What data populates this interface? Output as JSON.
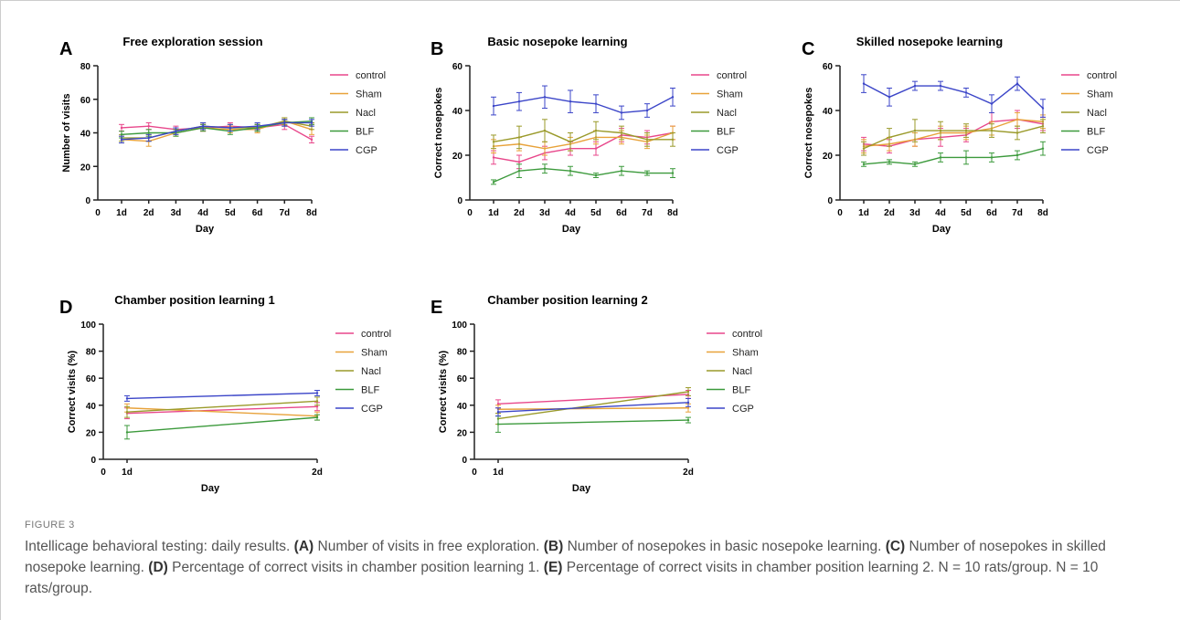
{
  "figure_label": "FIGURE 3",
  "caption": {
    "intro": "Intellicage behavioral testing: daily results.",
    "parts": [
      {
        "letter": "(A)",
        "text": " Number of visits in free exploration. "
      },
      {
        "letter": "(B)",
        "text": " Number of nosepokes in basic nosepoke learning. "
      },
      {
        "letter": "(C)",
        "text": " Number of nosepokes in skilled nosepoke learning. "
      },
      {
        "letter": "(D)",
        "text": " Percentage of correct visits in chamber position learning 1. "
      },
      {
        "letter": "(E)",
        "text": " Percentage of correct visits in chamber position learning 2. "
      }
    ],
    "n_note": "N = 10 rats/group. N = 10 rats/group."
  },
  "chart_data": [
    {
      "letter": "A",
      "type": "line",
      "title": "Free exploration session",
      "xlabel": "Day",
      "ylabel": "Number of visits",
      "categories": [
        "1d",
        "2d",
        "3d",
        "4d",
        "5d",
        "6d",
        "7d",
        "8d"
      ],
      "x_origin_label": "0",
      "ylim": [
        0,
        80
      ],
      "yticks": [
        0,
        20,
        40,
        60,
        80
      ],
      "legend": "right",
      "series": [
        {
          "name": "control",
          "color": "#e8478b",
          "values": [
            43,
            44,
            42,
            43,
            44,
            43,
            45,
            36
          ],
          "errors": [
            2,
            2,
            2,
            2,
            2,
            2,
            3,
            2
          ]
        },
        {
          "name": "Sham",
          "color": "#e8a23a",
          "values": [
            36,
            35,
            40,
            43,
            42,
            42,
            47,
            42
          ],
          "errors": [
            2,
            3,
            2,
            2,
            2,
            2,
            2,
            3
          ]
        },
        {
          "name": "Nacl",
          "color": "#9a9a2a",
          "values": [
            37,
            37,
            41,
            44,
            43,
            43,
            47,
            44
          ],
          "errors": [
            2,
            2,
            2,
            2,
            2,
            2,
            2,
            2
          ]
        },
        {
          "name": "BLF",
          "color": "#3c9a3c",
          "values": [
            39,
            40,
            40,
            43,
            41,
            43,
            46,
            47
          ],
          "errors": [
            2,
            2,
            2,
            2,
            2,
            2,
            2,
            2
          ]
        },
        {
          "name": "CGP",
          "color": "#3b45c8",
          "values": [
            36,
            37,
            41,
            44,
            43,
            44,
            46,
            46
          ],
          "errors": [
            2,
            2,
            2,
            2,
            2,
            2,
            2,
            2
          ]
        }
      ]
    },
    {
      "letter": "B",
      "type": "line",
      "title": "Basic nosepoke learning",
      "xlabel": "Day",
      "ylabel": "Correct nosepokes",
      "categories": [
        "1d",
        "2d",
        "3d",
        "4d",
        "5d",
        "6d",
        "7d",
        "8d"
      ],
      "x_origin_label": "0",
      "ylim": [
        0,
        60
      ],
      "yticks": [
        0,
        20,
        40,
        60
      ],
      "legend": "right",
      "series": [
        {
          "name": "control",
          "color": "#e8478b",
          "values": [
            19,
            17,
            21,
            23,
            23,
            29,
            28,
            30
          ],
          "errors": [
            3,
            3,
            3,
            3,
            3,
            3,
            3,
            3
          ]
        },
        {
          "name": "Sham",
          "color": "#e8a23a",
          "values": [
            24,
            25,
            23,
            25,
            28,
            28,
            26,
            30
          ],
          "errors": [
            3,
            3,
            3,
            3,
            3,
            3,
            3,
            3
          ]
        },
        {
          "name": "Nacl",
          "color": "#9a9a2a",
          "values": [
            26,
            28,
            31,
            26,
            31,
            30,
            27,
            27
          ],
          "errors": [
            3,
            5,
            5,
            4,
            4,
            3,
            3,
            3
          ]
        },
        {
          "name": "BLF",
          "color": "#3c9a3c",
          "values": [
            8,
            13,
            14,
            13,
            11,
            13,
            12,
            12
          ],
          "errors": [
            1,
            3,
            2,
            2,
            1,
            2,
            1,
            2
          ]
        },
        {
          "name": "CGP",
          "color": "#3b45c8",
          "values": [
            42,
            44,
            46,
            44,
            43,
            39,
            40,
            46
          ],
          "errors": [
            4,
            4,
            5,
            5,
            4,
            3,
            3,
            4
          ]
        }
      ]
    },
    {
      "letter": "C",
      "type": "line",
      "title": "Skilled nosepoke learning",
      "xlabel": "Day",
      "ylabel": "Correct nosepokes",
      "categories": [
        "1d",
        "2d",
        "3d",
        "4d",
        "5d",
        "6d",
        "7d",
        "8d"
      ],
      "x_origin_label": "0",
      "ylim": [
        0,
        60
      ],
      "yticks": [
        0,
        20,
        40,
        60
      ],
      "legend": "right",
      "series": [
        {
          "name": "control",
          "color": "#e8478b",
          "values": [
            25,
            24,
            27,
            28,
            29,
            35,
            36,
            34
          ],
          "errors": [
            3,
            3,
            3,
            4,
            3,
            4,
            4,
            3
          ]
        },
        {
          "name": "Sham",
          "color": "#e8a23a",
          "values": [
            24,
            25,
            27,
            30,
            30,
            32,
            36,
            35
          ],
          "errors": [
            3,
            3,
            3,
            3,
            3,
            3,
            3,
            3
          ]
        },
        {
          "name": "Nacl",
          "color": "#9a9a2a",
          "values": [
            23,
            28,
            31,
            31,
            31,
            31,
            30,
            33
          ],
          "errors": [
            3,
            4,
            5,
            4,
            3,
            3,
            3,
            3
          ]
        },
        {
          "name": "BLF",
          "color": "#3c9a3c",
          "values": [
            16,
            17,
            16,
            19,
            19,
            19,
            20,
            23
          ],
          "errors": [
            1,
            1,
            1,
            2,
            3,
            2,
            2,
            3
          ]
        },
        {
          "name": "CGP",
          "color": "#3b45c8",
          "values": [
            52,
            46,
            51,
            51,
            48,
            43,
            52,
            41
          ],
          "errors": [
            4,
            4,
            2,
            2,
            2,
            4,
            3,
            4
          ]
        }
      ]
    },
    {
      "letter": "D",
      "type": "line",
      "title": "Chamber position learning 1",
      "xlabel": "Day",
      "ylabel": "Correct visits (%)",
      "categories": [
        "1d",
        "2d"
      ],
      "x_origin_label": "0",
      "ylim": [
        0,
        100
      ],
      "yticks": [
        0,
        20,
        40,
        60,
        80,
        100
      ],
      "legend": "right",
      "series": [
        {
          "name": "control",
          "color": "#e8478b",
          "values": [
            34,
            39
          ],
          "errors": [
            4,
            3
          ]
        },
        {
          "name": "Sham",
          "color": "#e8a23a",
          "values": [
            38,
            32
          ],
          "errors": [
            3,
            3
          ]
        },
        {
          "name": "Nacl",
          "color": "#9a9a2a",
          "values": [
            35,
            43
          ],
          "errors": [
            4,
            3
          ]
        },
        {
          "name": "BLF",
          "color": "#3c9a3c",
          "values": [
            20,
            31
          ],
          "errors": [
            5,
            2
          ]
        },
        {
          "name": "CGP",
          "color": "#3b45c8",
          "values": [
            45,
            49
          ],
          "errors": [
            2,
            2
          ]
        }
      ]
    },
    {
      "letter": "E",
      "type": "line",
      "title": "Chamber position learning 2",
      "xlabel": "Day",
      "ylabel": "Correct visits (%)",
      "categories": [
        "1d",
        "2d"
      ],
      "x_origin_label": "0",
      "ylim": [
        0,
        100
      ],
      "yticks": [
        0,
        20,
        40,
        60,
        80,
        100
      ],
      "legend": "right",
      "series": [
        {
          "name": "control",
          "color": "#e8478b",
          "values": [
            41,
            48
          ],
          "errors": [
            3,
            3
          ]
        },
        {
          "name": "Sham",
          "color": "#e8a23a",
          "values": [
            37,
            38
          ],
          "errors": [
            3,
            3
          ]
        },
        {
          "name": "Nacl",
          "color": "#9a9a2a",
          "values": [
            30,
            50
          ],
          "errors": [
            4,
            3
          ]
        },
        {
          "name": "BLF",
          "color": "#3c9a3c",
          "values": [
            26,
            29
          ],
          "errors": [
            6,
            2
          ]
        },
        {
          "name": "CGP",
          "color": "#3b45c8",
          "values": [
            35,
            42
          ],
          "errors": [
            3,
            3
          ]
        }
      ]
    }
  ]
}
